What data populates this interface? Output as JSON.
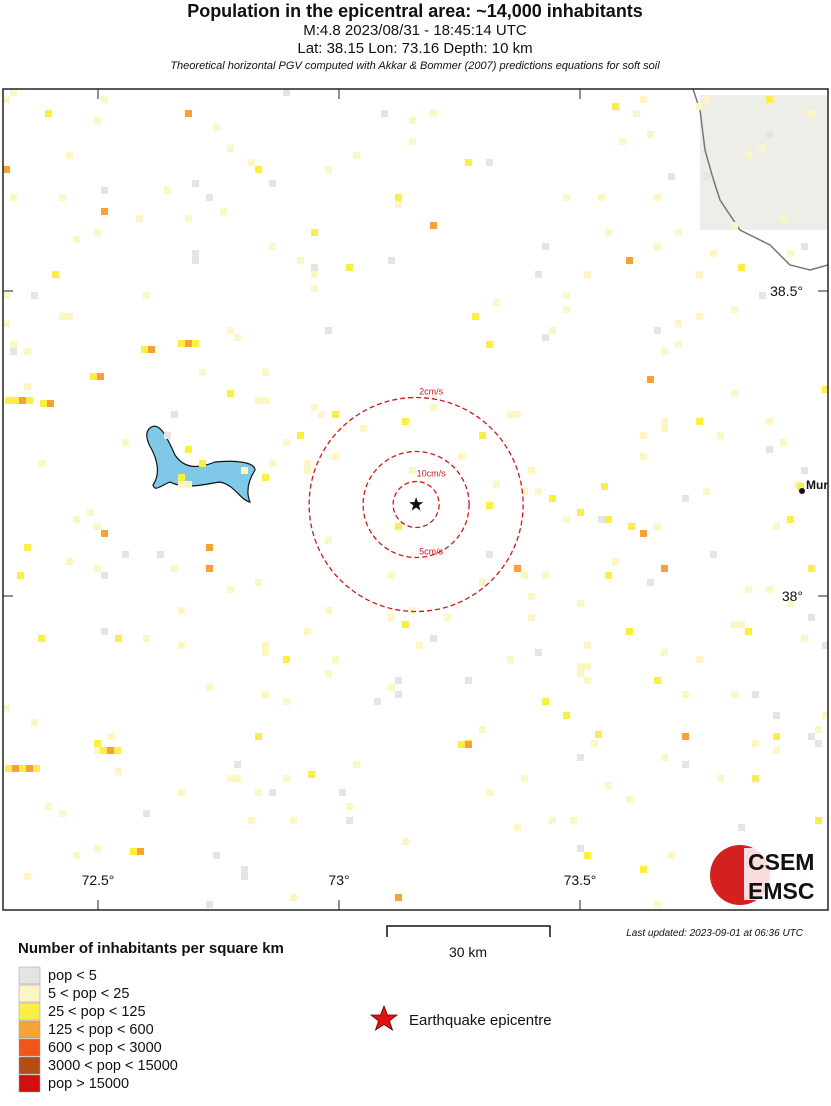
{
  "header": {
    "title": "Population in the epicentral area: ~14,000 inhabitants",
    "line1": "M:4.8 2023/08/31 - 18:45:14 UTC",
    "line2": "Lat: 38.15 Lon: 73.16 Depth: 10 km",
    "line3": "Theoretical horizontal PGV computed with Akkar & Bommer (2007) predictions equations for soft soil"
  },
  "map": {
    "lon_labels": [
      {
        "value": 72.5,
        "label": "72.5°"
      },
      {
        "value": 73,
        "label": "73°"
      },
      {
        "value": 73.5,
        "label": "73.5°"
      }
    ],
    "lat_labels": [
      {
        "value": 38.5,
        "label": "38.5°"
      },
      {
        "value": 38,
        "label": "38°"
      }
    ],
    "epicentre": {
      "lat": 38.15,
      "lon": 73.16
    },
    "contours": [
      "2cm/s",
      "10cm/s",
      "5cm/s"
    ],
    "city": "Mur",
    "logo": [
      "CSEM",
      "EMSC"
    ]
  },
  "scale_bar": "30 km",
  "last_updated": "Last updated: 2023-09-01 at 06:36 UTC",
  "legend": {
    "title": "Number of inhabitants per square km",
    "items": [
      {
        "label": "pop < 5",
        "color": "#e4e4e0"
      },
      {
        "label": "5 < pop < 25",
        "color": "#fbf6c4"
      },
      {
        "label": "25 < pop < 125",
        "color": "#fbee44"
      },
      {
        "label": "125 < pop < 600",
        "color": "#f7a136"
      },
      {
        "label": "600 < pop < 3000",
        "color": "#f0561c"
      },
      {
        "label": "3000 < pop < 15000",
        "color": "#b44c14"
      },
      {
        "label": "pop > 15000",
        "color": "#d20f0f"
      }
    ],
    "epicentre_label": "Earthquake epicentre"
  }
}
